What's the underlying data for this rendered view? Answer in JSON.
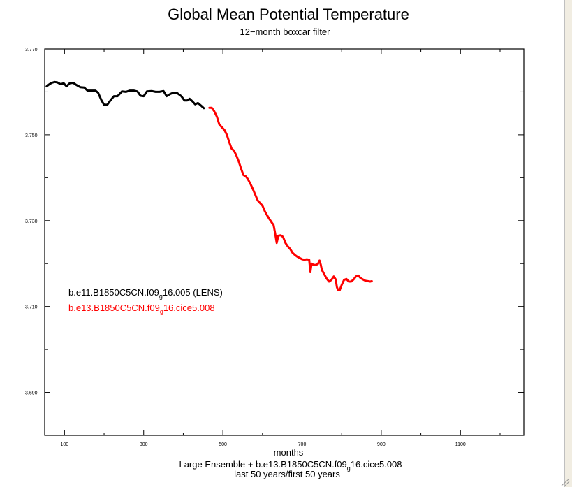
{
  "chart_data": {
    "type": "line",
    "title": "Global Mean Potential Temperature",
    "subtitle": "12−month boxcar filter",
    "xlabel": "months",
    "footer": {
      "line1_prefix": "Large Ensemble + b.e13.B1850C5CN.f09",
      "line1_sub": "g",
      "line1_suffix": "16.cice5.008",
      "line2": "last 50 years/first 50 years"
    },
    "xlim": [
      50,
      1260
    ],
    "ylim": [
      3.68,
      3.77
    ],
    "x_ticks": [
      {
        "value": 100,
        "label": "100"
      },
      {
        "value": 300,
        "label": "300"
      },
      {
        "value": 500,
        "label": "500"
      },
      {
        "value": 700,
        "label": "700"
      },
      {
        "value": 900,
        "label": "900"
      },
      {
        "value": 1100,
        "label": "1100"
      }
    ],
    "y_ticks": [
      {
        "value": 3.77,
        "label": "3.770"
      },
      {
        "value": 3.75,
        "label": "3.750"
      },
      {
        "value": 3.73,
        "label": "3.730"
      },
      {
        "value": 3.71,
        "label": "3.710"
      },
      {
        "value": 3.69,
        "label": "3.690"
      }
    ],
    "series": [
      {
        "name": "LENS",
        "legend": {
          "prefix": "b.e11.B1850C5CN.f09",
          "sub": "g",
          "suffix": "16.005 (LENS)"
        },
        "color": "#000000",
        "points": [
          [
            55,
            3.7613
          ],
          [
            62,
            3.7618
          ],
          [
            68,
            3.7621
          ],
          [
            75,
            3.7623
          ],
          [
            82,
            3.7622
          ],
          [
            90,
            3.7618
          ],
          [
            98,
            3.762
          ],
          [
            105,
            3.7613
          ],
          [
            113,
            3.762
          ],
          [
            122,
            3.7621
          ],
          [
            130,
            3.7616
          ],
          [
            140,
            3.7611
          ],
          [
            150,
            3.761
          ],
          [
            158,
            3.7603
          ],
          [
            168,
            3.7603
          ],
          [
            178,
            3.7603
          ],
          [
            185,
            3.7598
          ],
          [
            193,
            3.7581
          ],
          [
            200,
            3.757
          ],
          [
            208,
            3.757
          ],
          [
            216,
            3.758
          ],
          [
            225,
            3.759
          ],
          [
            234,
            3.759
          ],
          [
            245,
            3.7601
          ],
          [
            255,
            3.76
          ],
          [
            265,
            3.7603
          ],
          [
            275,
            3.7603
          ],
          [
            284,
            3.7601
          ],
          [
            292,
            3.7591
          ],
          [
            300,
            3.759
          ],
          [
            308,
            3.7601
          ],
          [
            320,
            3.7602
          ],
          [
            330,
            3.76
          ],
          [
            340,
            3.76
          ],
          [
            350,
            3.7602
          ],
          [
            358,
            3.759
          ],
          [
            367,
            3.7595
          ],
          [
            375,
            3.7598
          ],
          [
            385,
            3.7597
          ],
          [
            395,
            3.759
          ],
          [
            403,
            3.758
          ],
          [
            410,
            3.758
          ],
          [
            416,
            3.7584
          ],
          [
            423,
            3.7578
          ],
          [
            430,
            3.7571
          ],
          [
            437,
            3.7574
          ],
          [
            445,
            3.7568
          ],
          [
            452,
            3.7562
          ]
        ]
      },
      {
        "name": "cice5.008",
        "legend": {
          "prefix": "b.e13.B1850C5CN.f09",
          "sub": "g",
          "suffix": "16.cice5.008"
        },
        "color": "#ff0000",
        "points": [
          [
            466,
            3.7563
          ],
          [
            472,
            3.7563
          ],
          [
            478,
            3.7555
          ],
          [
            485,
            3.7542
          ],
          [
            491,
            3.7524
          ],
          [
            497,
            3.7518
          ],
          [
            504,
            3.7511
          ],
          [
            510,
            3.75
          ],
          [
            516,
            3.7483
          ],
          [
            522,
            3.7468
          ],
          [
            528,
            3.7463
          ],
          [
            534,
            3.7452
          ],
          [
            540,
            3.7438
          ],
          [
            546,
            3.7421
          ],
          [
            552,
            3.7406
          ],
          [
            558,
            3.7403
          ],
          [
            563,
            3.7397
          ],
          [
            570,
            3.7385
          ],
          [
            576,
            3.7373
          ],
          [
            582,
            3.736
          ],
          [
            588,
            3.7347
          ],
          [
            594,
            3.7341
          ],
          [
            600,
            3.7335
          ],
          [
            606,
            3.7322
          ],
          [
            612,
            3.7312
          ],
          [
            618,
            3.7303
          ],
          [
            624,
            3.7295
          ],
          [
            628,
            3.729
          ],
          [
            632,
            3.727
          ],
          [
            636,
            3.7248
          ],
          [
            640,
            3.7265
          ],
          [
            646,
            3.7266
          ],
          [
            652,
            3.7262
          ],
          [
            658,
            3.7248
          ],
          [
            664,
            3.724
          ],
          [
            670,
            3.7234
          ],
          [
            676,
            3.7225
          ],
          [
            682,
            3.722
          ],
          [
            688,
            3.7216
          ],
          [
            694,
            3.7213
          ],
          [
            700,
            3.721
          ],
          [
            706,
            3.7209
          ],
          [
            712,
            3.721
          ],
          [
            718,
            3.7209
          ],
          [
            721,
            3.718
          ],
          [
            724,
            3.72
          ],
          [
            729,
            3.7197
          ],
          [
            735,
            3.7197
          ],
          [
            740,
            3.7199
          ],
          [
            744,
            3.7207
          ],
          [
            747,
            3.7198
          ],
          [
            750,
            3.7185
          ],
          [
            756,
            3.7175
          ],
          [
            762,
            3.7165
          ],
          [
            768,
            3.7158
          ],
          [
            774,
            3.7162
          ],
          [
            780,
            3.717
          ],
          [
            785,
            3.7163
          ],
          [
            788,
            3.7145
          ],
          [
            791,
            3.7138
          ],
          [
            795,
            3.7138
          ],
          [
            800,
            3.715
          ],
          [
            806,
            3.7162
          ],
          [
            812,
            3.7164
          ],
          [
            818,
            3.7158
          ],
          [
            824,
            3.7158
          ],
          [
            830,
            3.7163
          ],
          [
            836,
            3.717
          ],
          [
            842,
            3.7172
          ],
          [
            848,
            3.7166
          ],
          [
            854,
            3.7163
          ],
          [
            860,
            3.716
          ],
          [
            866,
            3.7159
          ],
          [
            872,
            3.7158
          ],
          [
            876,
            3.7159
          ]
        ]
      }
    ]
  }
}
